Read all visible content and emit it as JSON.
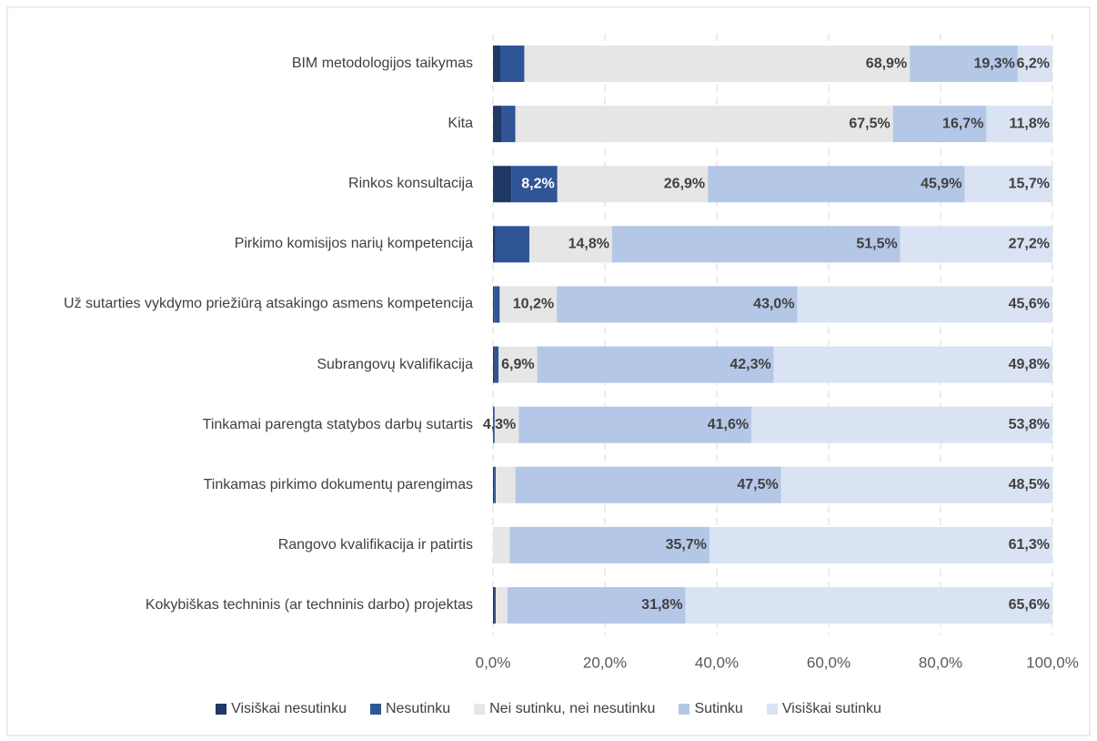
{
  "chart_data": {
    "type": "stacked_bar_horizontal",
    "categories": [
      "BIM metodologijos taikymas",
      "Kita",
      "Rinkos konsultacija",
      "Pirkimo komisijos narių kompetencija",
      "Už sutarties vykdymo priežiūrą atsakingo asmens kompetencija",
      "Subrangovų kvalifikacija",
      "Tinkamai parengta statybos darbų sutartis",
      "Tinkamas pirkimo dokumentų parengimas",
      "Rangovo kvalifikacija ir patirtis",
      "Kokybiškas techninis (ar techninis darbo) projektas"
    ],
    "series": [
      {
        "name": "Visiškai nesutinku",
        "color": "#203864",
        "values": [
          1.3,
          1.6,
          3.3,
          0.4,
          0.2,
          0.3,
          0.1,
          0.2,
          0,
          0.3
        ],
        "value_labels": [
          null,
          null,
          null,
          null,
          null,
          null,
          null,
          null,
          null,
          null
        ],
        "label_color": "#404040"
      },
      {
        "name": "Nesutinku",
        "color": "#2f5597",
        "values": [
          4.3,
          2.4,
          8.2,
          6.1,
          1.0,
          0.7,
          0.2,
          0.3,
          0,
          0.2
        ],
        "value_labels": [
          null,
          null,
          "8,2%",
          null,
          null,
          null,
          null,
          null,
          null,
          null
        ],
        "label_color": "#ffffff"
      },
      {
        "name": "Nei sutinku, nei nesutinku",
        "color": "#e7e6e6",
        "values": [
          68.9,
          67.5,
          26.9,
          14.8,
          10.2,
          6.9,
          4.3,
          3.5,
          3.0,
          2.1
        ],
        "value_labels": [
          "68,9%",
          "67,5%",
          "26,9%",
          "14,8%",
          "10,2%",
          "6,9%",
          "4,3%",
          null,
          null,
          null
        ],
        "label_color": "#404040"
      },
      {
        "name": "Sutinku",
        "color": "#b4c7e7",
        "values": [
          19.3,
          16.7,
          45.9,
          51.5,
          43.0,
          42.3,
          41.6,
          47.5,
          35.7,
          31.8
        ],
        "value_labels": [
          "19,3%",
          "16,7%",
          "45,9%",
          "51,5%",
          "43,0%",
          "42,3%",
          "41,6%",
          "47,5%",
          "35,7%",
          "31,8%"
        ],
        "label_color": "#404040"
      },
      {
        "name": "Visiškai sutinku",
        "color": "#dae3f3",
        "values": [
          6.2,
          11.8,
          15.7,
          27.2,
          45.6,
          49.8,
          53.8,
          48.5,
          61.3,
          65.6
        ],
        "value_labels": [
          "6,2%",
          "11,8%",
          "15,7%",
          "27,2%",
          "45,6%",
          "49,8%",
          "53,8%",
          "48,5%",
          "61,3%",
          "65,6%"
        ],
        "label_color": "#404040"
      }
    ],
    "xlim": [
      0,
      100
    ],
    "xticks": [
      {
        "value": 0,
        "label": "0,0%"
      },
      {
        "value": 20,
        "label": "20,0%"
      },
      {
        "value": 40,
        "label": "40,0%"
      },
      {
        "value": 60,
        "label": "60,0%"
      },
      {
        "value": 80,
        "label": "80,0%"
      },
      {
        "value": 100,
        "label": "100,0%"
      }
    ],
    "grid": true,
    "legend": "bottom"
  }
}
